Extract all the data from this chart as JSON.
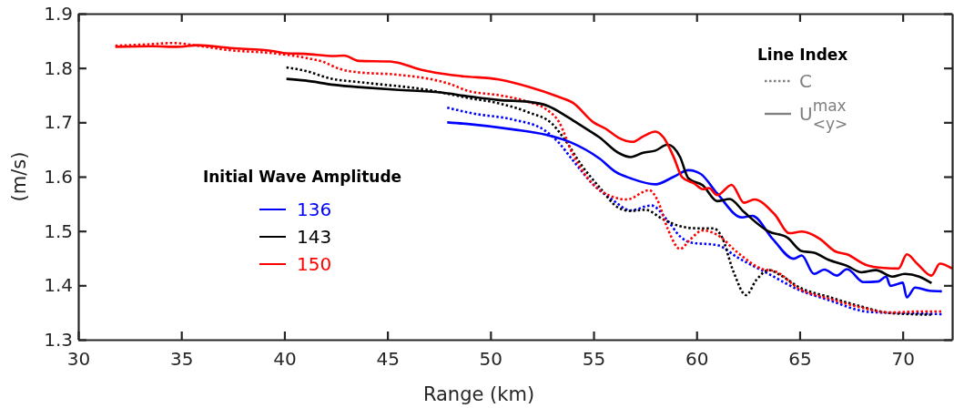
{
  "chart_data": {
    "type": "line",
    "xlabel": "Range (km)",
    "ylabel": "(m/s)",
    "legend_title": "Initial Wave Amplitude",
    "legend": "left",
    "xlim": [
      30,
      72.4
    ],
    "xticks": [
      30,
      35,
      40,
      45,
      50,
      55,
      60,
      65,
      70
    ],
    "ylim": [
      1.3,
      1.9
    ],
    "yticks": [
      1.3,
      1.4,
      1.5,
      1.6,
      1.7,
      1.8,
      1.9
    ],
    "grid": false,
    "annotations": [
      "Line Index",
      "C",
      "U$^{max}$$_{<y>}$"
    ],
    "series": [
      {
        "color": "#0000ff",
        "line_style": "dotted",
        "x": [
          47.9,
          49.2,
          51.1,
          52.6,
          53.3,
          54.0,
          55.0,
          55.9,
          56.8,
          57.8,
          58.6,
          59.2,
          59.7,
          61.0,
          62.0,
          63.5,
          65.0,
          66.4,
          68.4,
          70.1,
          71.9
        ],
        "values": [
          1.727,
          1.716,
          1.705,
          1.686,
          1.663,
          1.63,
          1.585,
          1.558,
          1.538,
          1.547,
          1.519,
          1.49,
          1.479,
          1.474,
          1.451,
          1.421,
          1.391,
          1.373,
          1.351,
          1.349,
          1.347
        ]
      },
      {
        "color": "#000000",
        "line_style": "dotted",
        "x": [
          40.1,
          41.0,
          42.2,
          43.9,
          46.9,
          48.9,
          50.4,
          51.8,
          53.0,
          53.7,
          54.4,
          55.3,
          56.2,
          56.8,
          57.5,
          58.4,
          59.1,
          60.0,
          60.8,
          61.2,
          61.8,
          62.4,
          62.9,
          63.5,
          64.1,
          65.0,
          66.4,
          67.9,
          69.4,
          71.4
        ],
        "values": [
          1.801,
          1.795,
          1.781,
          1.773,
          1.76,
          1.745,
          1.735,
          1.719,
          1.697,
          1.663,
          1.622,
          1.58,
          1.543,
          1.537,
          1.539,
          1.521,
          1.51,
          1.505,
          1.505,
          1.491,
          1.424,
          1.382,
          1.41,
          1.428,
          1.418,
          1.396,
          1.379,
          1.362,
          1.349,
          1.346
        ]
      },
      {
        "color": "#ff0000",
        "line_style": "dotted",
        "x": [
          31.8,
          33.6,
          34.6,
          35.8,
          37.3,
          39.5,
          41.0,
          41.9,
          42.7,
          43.6,
          45.4,
          47.4,
          48.0,
          48.9,
          50.4,
          51.8,
          52.7,
          53.3,
          54.0,
          55.0,
          55.8,
          56.6,
          57.7,
          58.1,
          58.6,
          59.2,
          59.7,
          60.3,
          61.0,
          62.0,
          63.2,
          63.8,
          65.0,
          66.4,
          67.9,
          69.4,
          70.9,
          71.9
        ],
        "values": [
          1.841,
          1.844,
          1.846,
          1.841,
          1.833,
          1.827,
          1.819,
          1.811,
          1.798,
          1.792,
          1.788,
          1.777,
          1.771,
          1.758,
          1.75,
          1.738,
          1.724,
          1.702,
          1.641,
          1.585,
          1.565,
          1.558,
          1.575,
          1.557,
          1.504,
          1.467,
          1.485,
          1.501,
          1.493,
          1.46,
          1.43,
          1.426,
          1.393,
          1.376,
          1.36,
          1.35,
          1.352,
          1.352
        ]
      },
      {
        "name": "136",
        "color": "#0000ff",
        "line_style": "solid",
        "x": [
          47.9,
          48.9,
          51.1,
          52.7,
          53.9,
          55.3,
          56.1,
          56.8,
          58.0,
          58.9,
          59.6,
          60.2,
          61.0,
          62.2,
          62.7,
          63.7,
          64.7,
          65.1,
          65.7,
          66.2,
          66.8,
          67.3,
          68.1,
          68.8,
          69.2,
          69.4,
          69.8,
          70.0,
          70.2,
          70.6,
          71.3,
          71.9
        ],
        "values": [
          1.7,
          1.697,
          1.687,
          1.677,
          1.663,
          1.633,
          1.608,
          1.597,
          1.586,
          1.6,
          1.612,
          1.605,
          1.569,
          1.525,
          1.528,
          1.485,
          1.449,
          1.455,
          1.421,
          1.429,
          1.418,
          1.43,
          1.406,
          1.407,
          1.416,
          1.399,
          1.403,
          1.405,
          1.378,
          1.396,
          1.39,
          1.389
        ]
      },
      {
        "name": "143",
        "color": "#000000",
        "line_style": "solid",
        "x": [
          40.1,
          41.0,
          42.4,
          43.9,
          45.4,
          47.6,
          48.9,
          50.4,
          51.8,
          52.8,
          53.7,
          54.4,
          55.3,
          56.2,
          56.8,
          57.4,
          58.0,
          58.6,
          59.2,
          59.6,
          60.3,
          61.0,
          61.6,
          62.3,
          63.5,
          64.4,
          65.1,
          65.7,
          66.4,
          67.3,
          68.0,
          68.7,
          69.5,
          70.1,
          70.8,
          71.4
        ],
        "values": [
          1.78,
          1.777,
          1.769,
          1.764,
          1.76,
          1.755,
          1.748,
          1.741,
          1.738,
          1.73,
          1.711,
          1.694,
          1.672,
          1.644,
          1.636,
          1.644,
          1.648,
          1.659,
          1.636,
          1.597,
          1.584,
          1.555,
          1.559,
          1.535,
          1.499,
          1.488,
          1.463,
          1.46,
          1.447,
          1.436,
          1.424,
          1.428,
          1.416,
          1.421,
          1.416,
          1.404
        ]
      },
      {
        "name": "150",
        "color": "#ff0000",
        "line_style": "solid",
        "x": [
          31.8,
          33.6,
          34.8,
          35.8,
          37.3,
          39.5,
          40.1,
          41.0,
          42.4,
          42.9,
          43.6,
          45.1,
          45.7,
          46.5,
          47.4,
          48.6,
          50.4,
          51.8,
          53.3,
          54.0,
          55.0,
          55.6,
          56.2,
          56.9,
          57.4,
          58.0,
          58.4,
          58.9,
          59.3,
          59.9,
          60.3,
          60.6,
          61.0,
          61.7,
          62.3,
          62.8,
          63.8,
          64.5,
          65.1,
          66.0,
          66.7,
          67.3,
          68.2,
          69.1,
          69.8,
          70.2,
          70.7,
          71.4,
          71.8,
          72.4
        ],
        "values": [
          1.839,
          1.84,
          1.839,
          1.842,
          1.837,
          1.831,
          1.827,
          1.826,
          1.822,
          1.823,
          1.813,
          1.812,
          1.808,
          1.798,
          1.791,
          1.785,
          1.779,
          1.766,
          1.747,
          1.736,
          1.7,
          1.688,
          1.672,
          1.664,
          1.674,
          1.683,
          1.672,
          1.635,
          1.599,
          1.587,
          1.577,
          1.579,
          1.566,
          1.585,
          1.552,
          1.558,
          1.53,
          1.496,
          1.499,
          1.485,
          1.463,
          1.457,
          1.438,
          1.432,
          1.431,
          1.457,
          1.44,
          1.418,
          1.44,
          1.431
        ]
      }
    ]
  }
}
